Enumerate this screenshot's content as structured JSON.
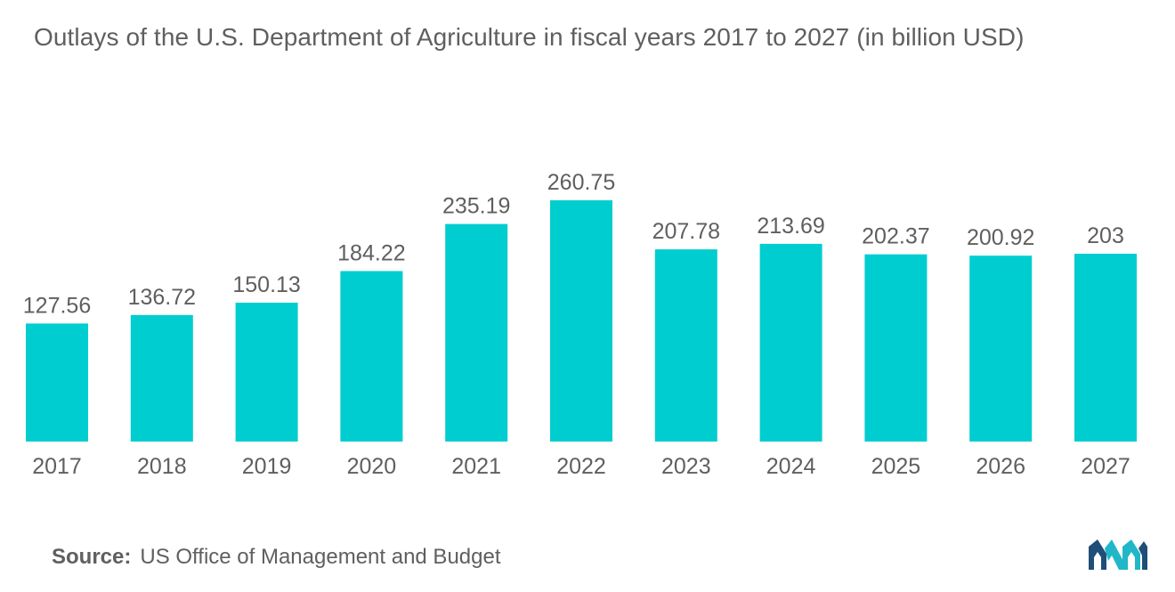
{
  "title": "Outlays of the U.S. Department of Agriculture in fiscal years 2017 to 2027 (in billion USD)",
  "source": {
    "label": "Source:",
    "text": "US Office of Management and Budget"
  },
  "colors": {
    "bar": "#00cdd0",
    "text": "#5f5f5f",
    "logo_dark": "#1f4e79",
    "logo_light": "#21b7c8"
  },
  "chart_data": {
    "type": "bar",
    "title": "Outlays of the U.S. Department of Agriculture in fiscal years 2017 to 2027 (in billion USD)",
    "categories": [
      "2017",
      "2018",
      "2019",
      "2020",
      "2021",
      "2022",
      "2023",
      "2024",
      "2025",
      "2026",
      "2027"
    ],
    "values": [
      127.56,
      136.72,
      150.13,
      184.22,
      235.19,
      260.75,
      207.78,
      213.69,
      202.37,
      200.92,
      203
    ],
    "value_labels": [
      "127.56",
      "136.72",
      "150.13",
      "184.22",
      "235.19",
      "260.75",
      "207.78",
      "213.69",
      "202.37",
      "200.92",
      "203"
    ],
    "xlabel": "",
    "ylabel": "",
    "ylim": [
      0,
      260.75
    ],
    "grid": false,
    "legend": "none"
  }
}
